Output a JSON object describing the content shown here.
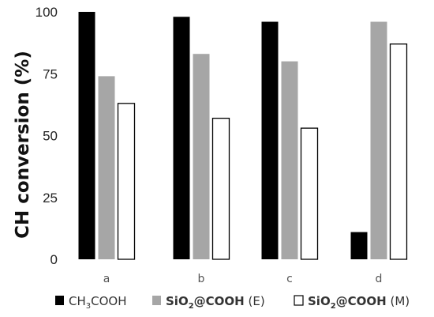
{
  "chart_data": {
    "type": "bar",
    "title": "",
    "xlabel": "",
    "ylabel": "CH conversion (%)",
    "ylim": [
      0,
      100
    ],
    "yticks": [
      "0",
      "25",
      "50",
      "75",
      "100"
    ],
    "grid": false,
    "legend_position": "bottom",
    "categories": [
      "a",
      "b",
      "c",
      "d"
    ],
    "series": [
      {
        "name": "CH3COOH",
        "values": [
          100,
          98,
          96,
          11
        ],
        "color": "#000000"
      },
      {
        "name": "SiO2@COOH (E)",
        "values": [
          74,
          83,
          80,
          96
        ],
        "color": "#a6a6a6"
      },
      {
        "name": "SiO2@COOH (M)",
        "values": [
          63,
          57,
          53,
          87
        ],
        "color": "#ffffff"
      }
    ]
  },
  "legend": {
    "entries": [
      {
        "prefix": "CH",
        "sub": "3",
        "rest": "COOH",
        "bold": "",
        "suffix": ""
      },
      {
        "prefix": "SiO",
        "sub": "2",
        "rest": "@COOH",
        "bold": "yes",
        "suffix": " (E)"
      },
      {
        "prefix": "SiO",
        "sub": "2",
        "rest": "@COOH",
        "bold": "yes",
        "suffix": " (M)"
      }
    ]
  }
}
